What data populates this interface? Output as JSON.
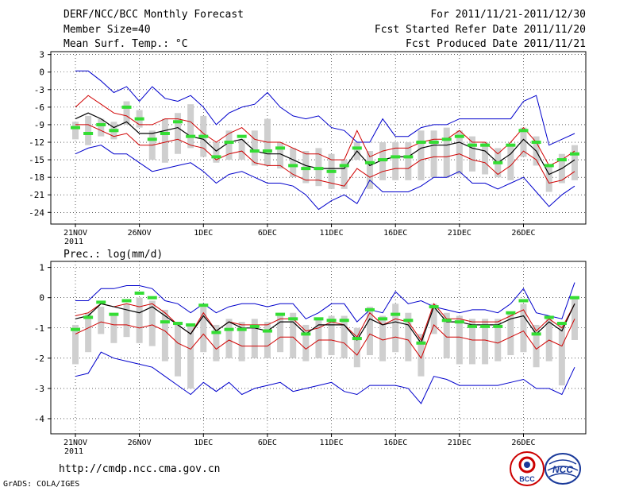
{
  "header": {
    "title": "DERF/NCC/BCC Monthly Forecast",
    "member_size": "Member Size=40",
    "variable": "Mean Surf. Temp.: °C",
    "period": "For 2011/11/21-2011/12/30",
    "started": "Fcst Started Refer Date 2011/11/20",
    "produced": "Fcst Produced Date 2011/11/21"
  },
  "footer": {
    "url": "http://cmdp.ncc.cma.gov.cn",
    "grads": "GrADS: COLA/IGES",
    "logo_bcc_text": "BCC",
    "logo_ncc_text": "NCC"
  },
  "colors": {
    "ensemble_mean": "#000000",
    "spread": "#d00000",
    "extremes": "#0000cc",
    "box": "#cfcfcf",
    "observed": "#33dd33",
    "grid": "#000000"
  },
  "chart_data": [
    {
      "type": "line",
      "title": "Mean Surf. Temp.: °C",
      "x_tick_labels": [
        "21NOV",
        "26NOV",
        "1DEC",
        "6DEC",
        "11DEC",
        "16DEC",
        "21DEC",
        "26DEC"
      ],
      "x_tick_days": [
        1,
        6,
        11,
        16,
        21,
        26,
        31,
        36
      ],
      "year_label": "2011",
      "xlim": [
        1,
        40
      ],
      "ylim": [
        -26,
        3.5
      ],
      "y_ticks": [
        3,
        0,
        -3,
        -6,
        -9,
        -12,
        -15,
        -18,
        -21,
        -24
      ],
      "grid": "dotted",
      "series": [
        {
          "name": "max",
          "values": [
            0.2,
            0.2,
            -1.5,
            -3.5,
            -2.5,
            -5,
            -2.5,
            -4.5,
            -5,
            -4,
            -6,
            -9,
            -7,
            -6,
            -5.5,
            -3.5,
            -6,
            -7.5,
            -8,
            -7.5,
            -9.5,
            -10,
            -12,
            -12,
            -8,
            -11,
            -11,
            -9.5,
            -9,
            -9,
            -8,
            -8,
            -8,
            -8,
            -8,
            -5,
            -4,
            -12.5,
            -11.5,
            -10.5
          ]
        },
        {
          "name": "upper",
          "values": [
            -6,
            -4,
            -5.5,
            -7,
            -7.5,
            -9,
            -9,
            -8,
            -8,
            -8.5,
            -10.5,
            -12,
            -10.5,
            -9.5,
            -11.5,
            -12,
            -12,
            -13,
            -14,
            -14,
            -15,
            -15,
            -10,
            -14.5,
            -13.5,
            -13,
            -13,
            -12,
            -11.5,
            -11.5,
            -10,
            -12,
            -12,
            -14,
            -12,
            -9.5,
            -12,
            -16,
            -15,
            -13.5
          ]
        },
        {
          "name": "mean",
          "values": [
            -8,
            -7,
            -8,
            -9.5,
            -8.5,
            -10.5,
            -10.5,
            -10,
            -9.5,
            -11,
            -11.5,
            -13.5,
            -12,
            -11.5,
            -13.5,
            -14,
            -14,
            -15,
            -16,
            -16.5,
            -16.5,
            -16.5,
            -13.5,
            -16,
            -15,
            -14.5,
            -14.5,
            -13,
            -12.5,
            -12.5,
            -12,
            -13,
            -13.5,
            -15.5,
            -14,
            -11.5,
            -13.5,
            -17.5,
            -16.5,
            -15
          ]
        },
        {
          "name": "lower",
          "values": [
            -9,
            -9,
            -10,
            -11,
            -10.5,
            -12.5,
            -12.5,
            -12,
            -11.5,
            -12.5,
            -13,
            -15,
            -14,
            -13.5,
            -15.5,
            -16,
            -16,
            -17.5,
            -18.5,
            -18.5,
            -19,
            -19.5,
            -16.5,
            -18,
            -17,
            -16.5,
            -16.5,
            -15,
            -14.5,
            -14.5,
            -14,
            -15,
            -15.5,
            -17.5,
            -16,
            -13.5,
            -15,
            -19,
            -18.5,
            -17
          ]
        },
        {
          "name": "min",
          "values": [
            -14,
            -13,
            -12.5,
            -14,
            -14,
            -15.5,
            -17,
            -16.5,
            -16,
            -15.5,
            -17,
            -19,
            -17.5,
            -17,
            -18,
            -19,
            -19,
            -19.5,
            -21,
            -23.5,
            -22,
            -21,
            -22.5,
            -18.5,
            -20.5,
            -20.5,
            -20.5,
            -19.5,
            -18,
            -18,
            -17,
            -19,
            -19,
            -20,
            -19,
            -18,
            -20.5,
            -23,
            -21,
            -19.5
          ]
        },
        {
          "name": "box_top",
          "values": [
            -8.5,
            -7.5,
            -8,
            -8.5,
            -5,
            -6.5,
            -10,
            -8,
            -7,
            -5.5,
            -7.5,
            -12,
            -10,
            -11.5,
            -10,
            -8,
            -12,
            -13,
            -13.5,
            -13,
            -14,
            -15,
            -12,
            -13.5,
            -12,
            -12,
            -12,
            -10,
            -10,
            -9.5,
            -10,
            -11,
            -12,
            -13,
            -12.5,
            -9.5,
            -11,
            -16,
            -14,
            -12.5
          ]
        },
        {
          "name": "box_bottom",
          "values": [
            -11.5,
            -12.5,
            -11,
            -11.5,
            -9,
            -9.5,
            -15,
            -15.5,
            -14,
            -13,
            -14.5,
            -15.5,
            -15,
            -15,
            -16,
            -16,
            -16.5,
            -18,
            -19,
            -19.5,
            -20,
            -20,
            -15,
            -20,
            -18.5,
            -18.5,
            -18.5,
            -18.5,
            -18,
            -18,
            -17.5,
            -17,
            -17.5,
            -18,
            -18.5,
            -14.5,
            -16,
            -20.5,
            -19,
            -18.5
          ]
        },
        {
          "name": "observed",
          "values": [
            -9.5,
            -10.5,
            -9,
            -10,
            -6,
            -8,
            -11.5,
            -10.5,
            -8.5,
            -11,
            -11,
            -14.5,
            -12,
            -11,
            -13.5,
            -13.5,
            -13,
            -16,
            -16.5,
            -16.5,
            -17,
            -16,
            -13,
            -15.5,
            -15,
            -14.5,
            -14.5,
            -12,
            -12,
            -11.5,
            -11,
            -12.5,
            -12.5,
            -15.5,
            -12.5,
            -10,
            -12,
            -16,
            -15,
            -14
          ]
        }
      ]
    },
    {
      "type": "line",
      "title": "Prec.: log(mm/d)",
      "x_tick_labels": [
        "21NOV",
        "26NOV",
        "1DEC",
        "6DEC",
        "11DEC",
        "16DEC",
        "21DEC",
        "26DEC"
      ],
      "x_tick_days": [
        1,
        6,
        11,
        16,
        21,
        26,
        31,
        36
      ],
      "year_label": "2011",
      "xlim": [
        1,
        40
      ],
      "ylim": [
        -4.5,
        1.2
      ],
      "y_ticks": [
        1,
        0,
        -1,
        -2,
        -3,
        -4
      ],
      "grid": "dotted",
      "series": [
        {
          "name": "max",
          "values": [
            -0.1,
            -0.1,
            0.3,
            0.3,
            0.4,
            0.4,
            0.3,
            -0.1,
            -0.2,
            -0.5,
            -0.2,
            -0.5,
            -0.3,
            -0.2,
            -0.2,
            -0.3,
            -0.2,
            -0.2,
            -0.7,
            -0.5,
            -0.2,
            -0.2,
            -0.8,
            -0.4,
            -0.5,
            0.2,
            -0.2,
            -0.1,
            -0.3,
            -0.4,
            -0.5,
            -0.4,
            -0.4,
            -0.5,
            -0.2,
            0.3,
            -0.5,
            -0.6,
            -0.7,
            0.5
          ]
        },
        {
          "name": "upper",
          "values": [
            -0.6,
            -0.5,
            -0.2,
            -0.3,
            -0.2,
            -0.3,
            -0.2,
            -0.5,
            -0.9,
            -1.2,
            -0.5,
            -1.1,
            -0.8,
            -0.9,
            -0.9,
            -0.9,
            -0.7,
            -0.7,
            -1.1,
            -1.0,
            -0.8,
            -0.9,
            -1.3,
            -0.5,
            -0.9,
            -0.7,
            -0.8,
            -1.4,
            -0.2,
            -0.7,
            -0.7,
            -0.8,
            -0.8,
            -0.8,
            -0.6,
            -0.4,
            -1.1,
            -0.7,
            -1.0,
            -0.2
          ]
        },
        {
          "name": "mean",
          "values": [
            -0.7,
            -0.6,
            -0.2,
            -0.3,
            -0.4,
            -0.5,
            -0.3,
            -0.6,
            -0.9,
            -1.2,
            -0.6,
            -1.1,
            -0.8,
            -1.0,
            -1.0,
            -1.1,
            -0.8,
            -0.8,
            -1.2,
            -0.9,
            -0.9,
            -0.9,
            -1.4,
            -0.7,
            -0.9,
            -0.8,
            -0.9,
            -1.5,
            -0.3,
            -0.8,
            -0.8,
            -0.9,
            -0.9,
            -0.9,
            -0.7,
            -0.6,
            -1.2,
            -0.8,
            -1.1,
            -0.2
          ]
        },
        {
          "name": "lower",
          "values": [
            -1.2,
            -1.0,
            -0.8,
            -0.9,
            -0.9,
            -1.0,
            -0.9,
            -1.1,
            -1.5,
            -1.7,
            -1.2,
            -1.7,
            -1.4,
            -1.6,
            -1.6,
            -1.6,
            -1.3,
            -1.3,
            -1.7,
            -1.4,
            -1.4,
            -1.5,
            -1.9,
            -1.2,
            -1.4,
            -1.3,
            -1.4,
            -2.0,
            -0.9,
            -1.3,
            -1.3,
            -1.4,
            -1.4,
            -1.5,
            -1.3,
            -1.1,
            -1.7,
            -1.4,
            -1.6,
            -0.7
          ]
        },
        {
          "name": "min",
          "values": [
            -2.6,
            -2.5,
            -1.8,
            -2.0,
            -2.1,
            -2.2,
            -2.3,
            -2.6,
            -2.9,
            -3.2,
            -2.8,
            -3.1,
            -2.8,
            -3.2,
            -3.0,
            -2.9,
            -2.8,
            -3.1,
            -3.0,
            -2.9,
            -2.8,
            -3.1,
            -3.2,
            -2.9,
            -2.9,
            -2.9,
            -3.0,
            -3.5,
            -2.6,
            -2.7,
            -2.9,
            -2.9,
            -2.9,
            -2.9,
            -2.8,
            -2.7,
            -3.0,
            -3.0,
            -3.2,
            -2.3
          ]
        },
        {
          "name": "box_top",
          "values": [
            -0.9,
            -0.5,
            -0.3,
            -0.6,
            -0.2,
            0.0,
            -0.1,
            -0.4,
            -0.8,
            -0.9,
            -0.3,
            -0.9,
            -0.7,
            -0.8,
            -0.7,
            -0.8,
            -0.5,
            -0.5,
            -0.9,
            -0.7,
            -0.6,
            -0.6,
            -1.0,
            -0.3,
            -0.6,
            -0.2,
            -0.5,
            -1.2,
            -0.2,
            -0.5,
            -0.6,
            -0.7,
            -0.7,
            -0.7,
            -0.5,
            -0.2,
            -0.9,
            -0.6,
            -0.9,
            0.0
          ]
        },
        {
          "name": "box_bottom",
          "values": [
            -2.2,
            -1.8,
            -1.2,
            -1.5,
            -1.3,
            -1.5,
            -1.6,
            -2.1,
            -2.6,
            -3.0,
            -1.8,
            -2.1,
            -2.0,
            -2.1,
            -2.0,
            -2.0,
            -1.8,
            -2.0,
            -2.1,
            -2.0,
            -1.9,
            -2.0,
            -2.3,
            -1.9,
            -2.1,
            -1.8,
            -2.1,
            -2.6,
            -1.2,
            -2.0,
            -2.2,
            -2.2,
            -2.2,
            -2.1,
            -1.9,
            -1.8,
            -2.3,
            -2.1,
            -2.9,
            -1.4
          ]
        },
        {
          "name": "observed",
          "values": [
            -1.05,
            -0.65,
            -0.15,
            -0.55,
            -0.1,
            0.15,
            0.0,
            -0.8,
            -0.85,
            -0.9,
            -0.25,
            -1.15,
            -1.05,
            -1.05,
            -0.95,
            -1.1,
            -0.55,
            -0.7,
            -1.2,
            -0.7,
            -0.75,
            -0.75,
            -1.35,
            -0.4,
            -0.7,
            -0.55,
            -0.75,
            -1.5,
            -0.3,
            -0.75,
            -0.8,
            -0.95,
            -0.95,
            -0.95,
            -0.5,
            -0.1,
            -1.2,
            -0.65,
            -0.85,
            0.0
          ]
        }
      ]
    }
  ]
}
